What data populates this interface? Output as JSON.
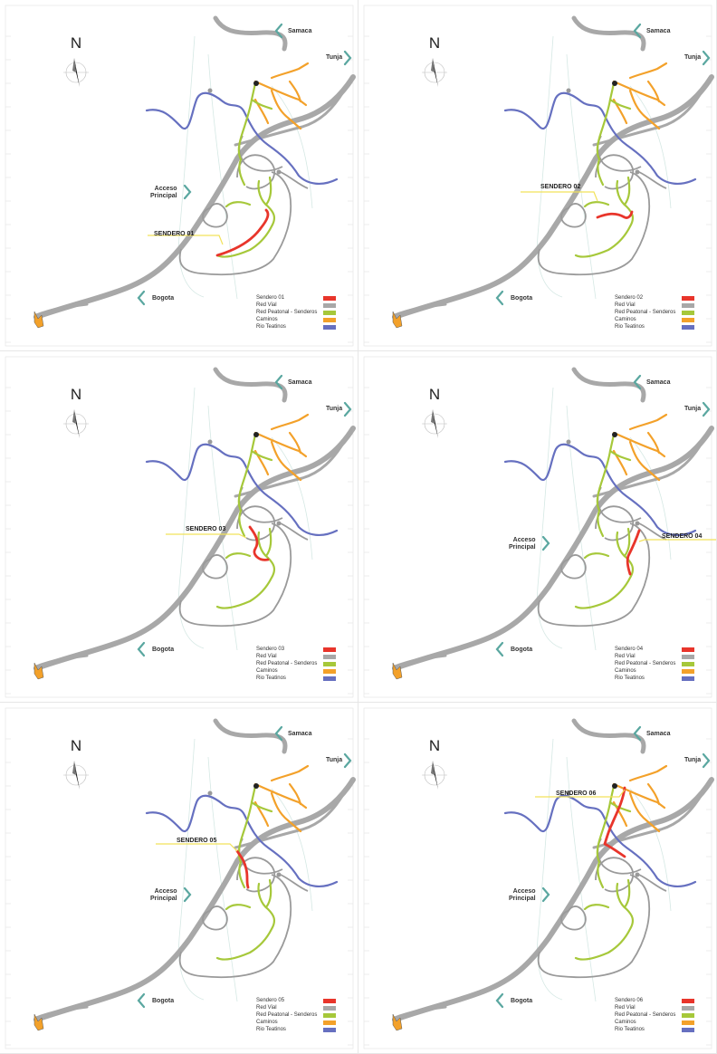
{
  "colors": {
    "sendero": "#e8352b",
    "red_vial": "#a8a8a8",
    "red_peatonal": "#a6c83a",
    "caminos": "#f3a12a",
    "rio": "#6670c0",
    "arrow": "#5aa7a0",
    "leader": "#f2e25a"
  },
  "north_label": "N",
  "cities": {
    "samaca": "Samaca",
    "tunja": "Tunja",
    "bogota": "Bogota"
  },
  "acceso": {
    "line1": "Acceso",
    "line2": "Principal"
  },
  "legend_items": [
    "Red Vial",
    "Red Peatonal - Senderos",
    "Caminos",
    "Rio Teatinos"
  ],
  "legend_icons": [
    "legend-gray-swatch",
    "legend-green-swatch",
    "legend-orange-swatch",
    "legend-blue-swatch"
  ],
  "panels": [
    {
      "legend_title": "Sendero 01",
      "sendero_label": "SENDERO 01",
      "show_acceso": true
    },
    {
      "legend_title": "Sendero 02",
      "sendero_label": "SENDERO 02",
      "show_acceso": false
    },
    {
      "legend_title": "Sendero 03",
      "sendero_label": "SENDERO 03",
      "show_acceso": false
    },
    {
      "legend_title": "Sendero 04",
      "sendero_label": "SENDERO 04",
      "show_acceso": true
    },
    {
      "legend_title": "Sendero 05",
      "sendero_label": "SENDERO 05",
      "show_acceso": true
    },
    {
      "legend_title": "Sendero 06",
      "sendero_label": "SENDERO 06",
      "show_acceso": true
    }
  ]
}
